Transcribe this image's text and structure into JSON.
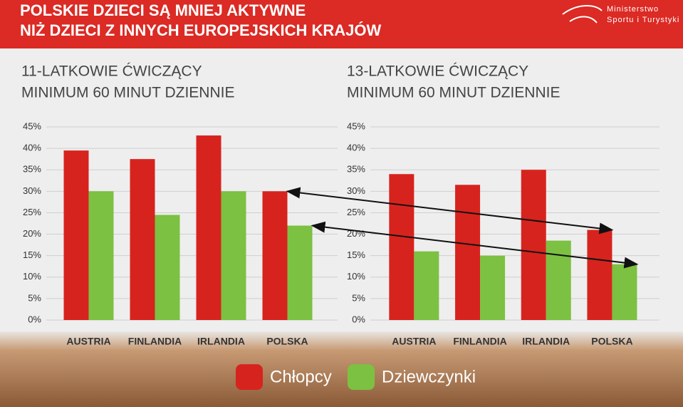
{
  "header": {
    "title_lines": [
      "POLSKIE DZIECI SĄ MNIEJ AKTYWNE",
      "NIŻ DZIECI Z INNYCH EUROPEJSKICH KRAJÓW"
    ],
    "logo_lines": [
      "Ministerstwo",
      "Sportu i Turystyki"
    ]
  },
  "chart_data": [
    {
      "type": "bar",
      "title_lines": [
        "11-LATKOWIE ĆWICZĄCY",
        "MINIMUM 60 MINUT DZIENNIE"
      ],
      "categories": [
        "AUSTRIA",
        "FINLANDIA",
        "IRLANDIA",
        "POLSKA"
      ],
      "series": [
        {
          "name": "Chłopcy",
          "color": "#d7231e",
          "values": [
            39.5,
            37.5,
            43,
            30
          ]
        },
        {
          "name": "Dziewczynki",
          "color": "#7cc142",
          "values": [
            30,
            24.5,
            30,
            22
          ]
        }
      ],
      "ylim": [
        0,
        45
      ],
      "yticks": [
        {
          "value": 0,
          "label": "0%"
        },
        {
          "value": 5,
          "label": "5%"
        },
        {
          "value": 10,
          "label": "10%"
        },
        {
          "value": 15,
          "label": "15%"
        },
        {
          "value": 20,
          "label": "20%"
        },
        {
          "value": 25,
          "label": "25%"
        },
        {
          "value": 30,
          "label": "30%"
        },
        {
          "value": 35,
          "label": "35%"
        },
        {
          "value": 40,
          "label": "40%"
        },
        {
          "value": 45,
          "label": "45%"
        }
      ],
      "grid": true
    },
    {
      "type": "bar",
      "title_lines": [
        "13-LATKOWIE ĆWICZĄCY",
        "MINIMUM 60 MINUT DZIENNIE"
      ],
      "categories": [
        "AUSTRIA",
        "FINLANDIA",
        "IRLANDIA",
        "POLSKA"
      ],
      "series": [
        {
          "name": "Chłopcy",
          "color": "#d7231e",
          "values": [
            34,
            31.5,
            35,
            21
          ]
        },
        {
          "name": "Dziewczynki",
          "color": "#7cc142",
          "values": [
            16,
            15,
            18.5,
            13
          ]
        }
      ],
      "ylim": [
        0,
        45
      ],
      "yticks": [
        {
          "value": 0,
          "label": "0%"
        },
        {
          "value": 5,
          "label": "5%"
        },
        {
          "value": 10,
          "label": "10%"
        },
        {
          "value": 15,
          "label": "15%"
        },
        {
          "value": 20,
          "label": "20%"
        },
        {
          "value": 25,
          "label": "25%"
        },
        {
          "value": 30,
          "label": "30%"
        },
        {
          "value": 35,
          "label": "35%"
        },
        {
          "value": 40,
          "label": "40%"
        },
        {
          "value": 45,
          "label": "45%"
        }
      ],
      "grid": true
    }
  ]
}
